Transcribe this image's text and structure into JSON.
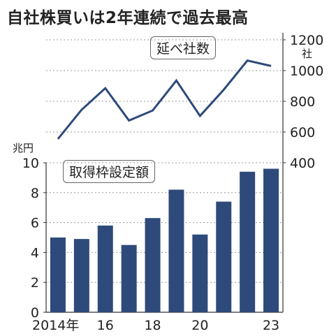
{
  "title": "自社株買いは2年連続で過去最高",
  "colors": {
    "bar": "#2e4a7a",
    "line": "#2e4a7a",
    "grid": "#9a9a9a"
  },
  "chart_data": [
    {
      "type": "bar",
      "label": "取得枠設定額",
      "y_unit": "兆円",
      "x": [
        2014,
        2015,
        2016,
        2017,
        2018,
        2019,
        2020,
        2021,
        2022,
        2023
      ],
      "x_tick_labels": [
        "2014年",
        "16",
        "18",
        "20",
        "23"
      ],
      "values": [
        5.0,
        4.9,
        5.8,
        4.5,
        6.3,
        8.2,
        5.2,
        7.4,
        9.4,
        9.6
      ],
      "ylim": [
        0,
        10
      ],
      "y_ticks": [
        0,
        2,
        4,
        6,
        8,
        10
      ]
    },
    {
      "type": "line",
      "label": "延べ社数",
      "y_unit": "社",
      "x": [
        2014,
        2015,
        2016,
        2017,
        2018,
        2019,
        2020,
        2021,
        2022,
        2023
      ],
      "values": [
        555,
        745,
        885,
        675,
        740,
        935,
        705,
        875,
        1065,
        1030
      ],
      "ylim": [
        400,
        1200
      ],
      "y_ticks": [
        400,
        600,
        800,
        1000,
        1200
      ]
    }
  ]
}
